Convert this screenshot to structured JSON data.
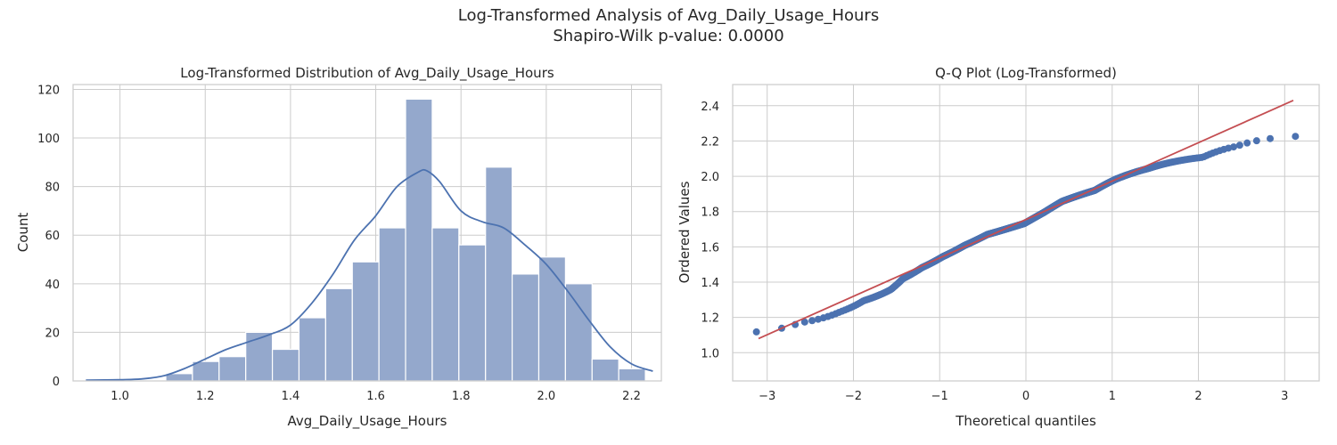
{
  "figure": {
    "suptitle_line1": "Log-Transformed Analysis of Avg_Daily_Usage_Hours",
    "suptitle_line2": "Shapiro-Wilk p-value: 0.0000"
  },
  "colors": {
    "hist_fill": "#94a8cc",
    "kde_line": "#4c72b0",
    "qq_points": "#4c72b0",
    "qq_line": "#c44e52",
    "grid": "#cccccc"
  },
  "chart_data": [
    {
      "type": "bar",
      "subtype": "histogram_with_kde",
      "title": "Log-Transformed Distribution of Avg_Daily_Usage_Hours",
      "xlabel": "Avg_Daily_Usage_Hours",
      "ylabel": "Count",
      "xlim": [
        0.89,
        2.27
      ],
      "ylim": [
        0,
        122
      ],
      "xticks": [
        1.0,
        1.2,
        1.4,
        1.6,
        1.8,
        2.0,
        2.2
      ],
      "xtick_labels": [
        "1.0",
        "1.2",
        "1.4",
        "1.6",
        "1.8",
        "2.0",
        "2.2"
      ],
      "yticks": [
        0,
        20,
        40,
        60,
        80,
        100,
        120
      ],
      "ytick_labels": [
        "0",
        "20",
        "40",
        "60",
        "80",
        "100",
        "120"
      ],
      "bin_start": 0.92,
      "bin_width": 0.0625,
      "values": [
        0,
        0,
        0,
        3,
        8,
        10,
        20,
        13,
        26,
        38,
        49,
        63,
        116,
        63,
        56,
        88,
        44,
        51,
        40,
        9,
        5
      ],
      "kde": {
        "x": [
          0.92,
          1.0,
          1.05,
          1.1,
          1.15,
          1.2,
          1.25,
          1.3,
          1.35,
          1.4,
          1.45,
          1.5,
          1.55,
          1.6,
          1.65,
          1.7,
          1.72,
          1.75,
          1.8,
          1.85,
          1.9,
          1.95,
          2.0,
          2.05,
          2.1,
          2.15,
          2.2,
          2.25
        ],
        "y": [
          0.3,
          0.5,
          0.8,
          2.0,
          5.0,
          9.0,
          13.0,
          16.0,
          19.0,
          23.0,
          32.0,
          44.0,
          58.0,
          68.0,
          80.0,
          86.0,
          86.5,
          82.0,
          70.0,
          65.5,
          63.0,
          56.0,
          48.0,
          37.0,
          25.0,
          14.0,
          7.0,
          4.0
        ]
      },
      "grid": true
    },
    {
      "type": "scatter",
      "subtype": "qq_plot",
      "title": "Q-Q Plot (Log-Transformed)",
      "xlabel": "Theoretical quantiles",
      "ylabel": "Ordered Values",
      "xlim": [
        -3.4,
        3.4
      ],
      "ylim": [
        0.84,
        2.52
      ],
      "xticks": [
        -3,
        -2,
        -1,
        0,
        1,
        2,
        3
      ],
      "xtick_labels": [
        "−3",
        "−2",
        "−1",
        "0",
        "1",
        "2",
        "3"
      ],
      "yticks": [
        1.0,
        1.2,
        1.4,
        1.6,
        1.8,
        2.0,
        2.2,
        2.4
      ],
      "ytick_labels": [
        "1.0",
        "1.2",
        "1.4",
        "1.6",
        "1.8",
        "2.0",
        "2.2",
        "2.4"
      ],
      "fit_line": {
        "x": [
          -3.1,
          3.1
        ],
        "y": [
          1.08,
          2.43
        ]
      },
      "grid": true
    }
  ]
}
